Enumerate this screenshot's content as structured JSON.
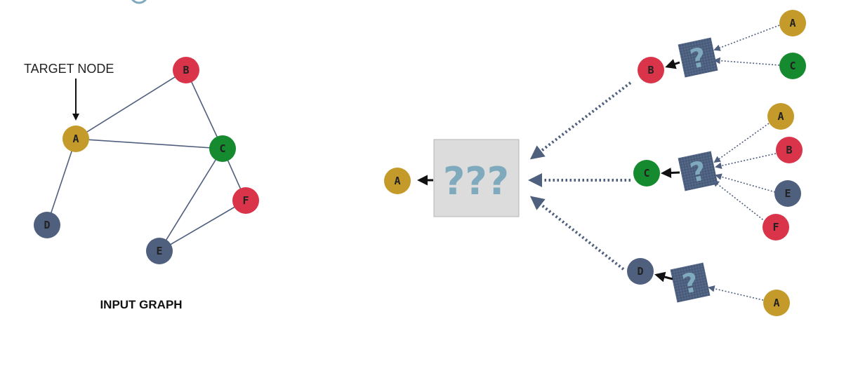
{
  "colors": {
    "A": "#c49a2a",
    "B": "#d9344a",
    "C": "#168a2e",
    "D": "#4f5f7e",
    "E": "#4f5f7e",
    "F": "#d9344a",
    "node_text": "#222222",
    "box_bg": "#dcdcdc",
    "box_q": "#7fa9bd",
    "small_box": "#4d6080",
    "small_q": "#7fa9bd",
    "edge": "#4f5f7e",
    "dotted": "#4f5f7e",
    "arrow": "#111111"
  },
  "input_graph": {
    "target_label": "TARGET NODE",
    "caption": "INPUT GRAPH",
    "nodes": [
      {
        "id": "A",
        "label": "A"
      },
      {
        "id": "B",
        "label": "B"
      },
      {
        "id": "C",
        "label": "C"
      },
      {
        "id": "D",
        "label": "D"
      },
      {
        "id": "E",
        "label": "E"
      },
      {
        "id": "F",
        "label": "F"
      }
    ],
    "edges": [
      [
        "A",
        "B"
      ],
      [
        "A",
        "C"
      ],
      [
        "B",
        "C"
      ],
      [
        "A",
        "D"
      ],
      [
        "C",
        "E"
      ],
      [
        "C",
        "F"
      ],
      [
        "E",
        "F"
      ]
    ]
  },
  "computation_graph": {
    "root": {
      "label": "A"
    },
    "big_box": {
      "text": "???"
    },
    "small_box_text": "?",
    "branches": [
      {
        "node": "B",
        "neighbors": [
          "A",
          "C"
        ]
      },
      {
        "node": "C",
        "neighbors": [
          "A",
          "B",
          "E",
          "F"
        ]
      },
      {
        "node": "D",
        "neighbors": [
          "A"
        ]
      }
    ]
  }
}
